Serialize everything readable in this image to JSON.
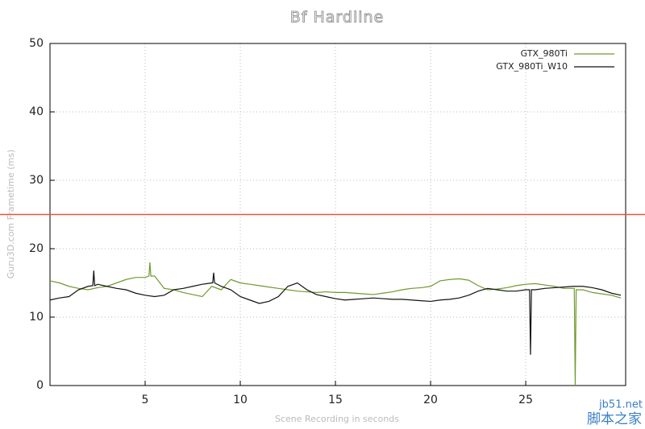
{
  "chart_data": {
    "type": "line",
    "title": "Bf Hardline",
    "x_label": "Scene Recording in seconds",
    "y_label": "Guru3D.com Frametime (ms)",
    "xlim": [
      0,
      30.25
    ],
    "xticks": [
      5,
      10,
      15,
      20,
      25
    ],
    "ylim": [
      0,
      50
    ],
    "yticks": [
      0,
      10,
      20,
      30,
      40,
      50
    ],
    "grid": true,
    "legend": "top-right",
    "reference_line": {
      "value": 25,
      "color": "#e8543a"
    },
    "watermark": [
      "jb51.net",
      "脚本之家"
    ],
    "series": [
      {
        "name": "GTX_980Ti",
        "color": "#6f9a2e",
        "x": [
          0,
          0.5,
          1,
          1.5,
          2,
          2.5,
          3,
          3.5,
          4,
          4.5,
          5,
          5.2,
          5.25,
          5.3,
          5.5,
          6,
          6.5,
          7,
          7.5,
          8,
          8.5,
          9,
          9.5,
          10,
          10.5,
          11,
          11.5,
          12,
          12.5,
          13,
          13.5,
          14,
          14.5,
          15,
          15.5,
          16,
          16.5,
          17,
          17.5,
          18,
          18.5,
          19,
          19.5,
          20,
          20.5,
          21,
          21.5,
          22,
          22.5,
          23,
          23.5,
          24,
          24.5,
          25,
          25.5,
          26,
          26.5,
          27,
          27.5,
          27.55,
          27.6,
          27.65,
          28,
          28.5,
          29,
          29.5,
          30
        ],
        "values": [
          15.3,
          15,
          14.5,
          14.2,
          14,
          14.3,
          14.5,
          15,
          15.5,
          15.8,
          15.8,
          16,
          18,
          16,
          16,
          14.2,
          14,
          13.6,
          13.3,
          13,
          14.5,
          14,
          15.5,
          15,
          14.8,
          14.6,
          14.4,
          14.2,
          14,
          13.8,
          13.7,
          13.6,
          13.7,
          13.6,
          13.6,
          13.5,
          13.4,
          13.3,
          13.5,
          13.7,
          14,
          14.2,
          14.3,
          14.5,
          15.3,
          15.5,
          15.6,
          15.4,
          14.6,
          14,
          14.1,
          14.3,
          14.6,
          14.8,
          14.9,
          14.7,
          14.5,
          14.2,
          14.2,
          14.2,
          0,
          14,
          14,
          13.6,
          13.4,
          13.2,
          12.8
        ]
      },
      {
        "name": "GTX_980Ti_W10",
        "color": "#111111",
        "x": [
          0,
          0.5,
          1,
          1.5,
          2,
          2.25,
          2.3,
          2.35,
          2.5,
          3,
          3.5,
          4,
          4.5,
          5,
          5.5,
          6,
          6.5,
          7,
          7.5,
          8,
          8.5,
          8.55,
          8.6,
          8.65,
          9,
          9.5,
          10,
          10.5,
          11,
          11.5,
          12,
          12.5,
          13,
          13.5,
          14,
          14.5,
          15,
          15.5,
          16,
          16.5,
          17,
          17.5,
          18,
          18.5,
          19,
          19.5,
          20,
          20.5,
          21,
          21.5,
          22,
          22.5,
          23,
          23.5,
          24,
          24.5,
          25,
          25.2,
          25.25,
          25.3,
          25.5,
          26,
          26.5,
          27,
          27.5,
          28,
          28.5,
          29,
          29.5,
          30
        ],
        "values": [
          12.5,
          12.8,
          13,
          14,
          14.5,
          14.6,
          16.8,
          14.6,
          14.8,
          14.5,
          14.2,
          14,
          13.5,
          13.2,
          13,
          13.2,
          14,
          14.2,
          14.5,
          14.8,
          15,
          15,
          16.5,
          15,
          14.5,
          14,
          13,
          12.5,
          12,
          12.3,
          13,
          14.5,
          15,
          14,
          13.3,
          13,
          12.7,
          12.5,
          12.6,
          12.7,
          12.8,
          12.7,
          12.6,
          12.6,
          12.5,
          12.4,
          12.3,
          12.5,
          12.6,
          12.8,
          13.2,
          13.8,
          14.2,
          14,
          13.8,
          13.8,
          14,
          14,
          4.5,
          14,
          14,
          14.2,
          14.3,
          14.4,
          14.5,
          14.5,
          14.3,
          14,
          13.5,
          13.2
        ]
      }
    ]
  }
}
